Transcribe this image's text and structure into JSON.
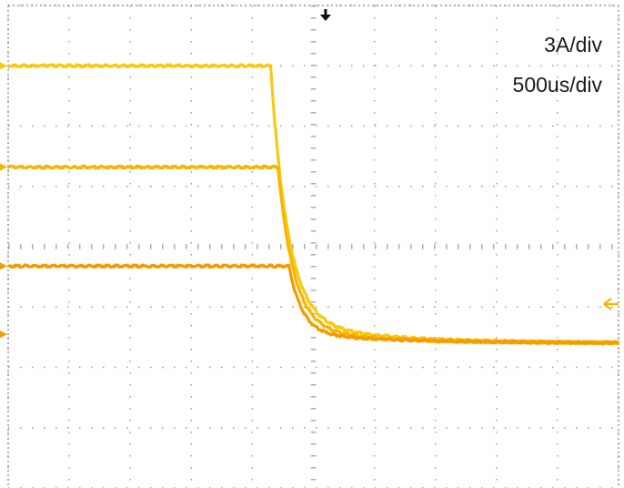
{
  "scope": {
    "vertical_scale": "3A/div",
    "time_scale": "500us/div"
  },
  "chart_data": {
    "type": "line",
    "title": "",
    "xlabel": "",
    "ylabel": "",
    "x_unit": "div",
    "y_unit": "div",
    "xlim": [
      0,
      10
    ],
    "ylim": [
      -4,
      4
    ],
    "grid": true,
    "trigger_position_div": 5.2,
    "series": [
      {
        "color": "#F9C910",
        "x": [
          0,
          4.3,
          4.45,
          10
        ],
        "y": [
          3.0,
          3.0,
          3.0,
          3.0
        ],
        "fall": {
          "t0": 4.3,
          "level": 3.0,
          "final": -1.6,
          "tau": 0.28,
          "slow_tau": 1.6,
          "slow_frac": 0.08
        }
      },
      {
        "color": "#F7B500",
        "fall": {
          "t0": 4.42,
          "level": 1.32,
          "final": -1.6,
          "tau": 0.26,
          "slow_tau": 1.6,
          "slow_frac": 0.08
        }
      },
      {
        "color": "#F59A00",
        "fall": {
          "t0": 4.6,
          "level": -0.32,
          "final": -1.6,
          "tau": 0.22,
          "slow_tau": 1.8,
          "slow_frac": 0.12
        }
      }
    ],
    "ground_markers": [
      {
        "side": "left",
        "level": 3.0,
        "color": "#F9C910"
      },
      {
        "side": "left",
        "level": 1.32,
        "color": "#F7B500"
      },
      {
        "side": "left",
        "level": -0.32,
        "color": "#F59A00"
      },
      {
        "side": "left",
        "level": -1.45,
        "color": "#F59A00"
      },
      {
        "side": "right",
        "level": -0.95,
        "color": "#F7B500"
      }
    ],
    "colors": {
      "grid": "#9a9a9a",
      "trigger": "#111111",
      "frame": "#999999"
    }
  }
}
